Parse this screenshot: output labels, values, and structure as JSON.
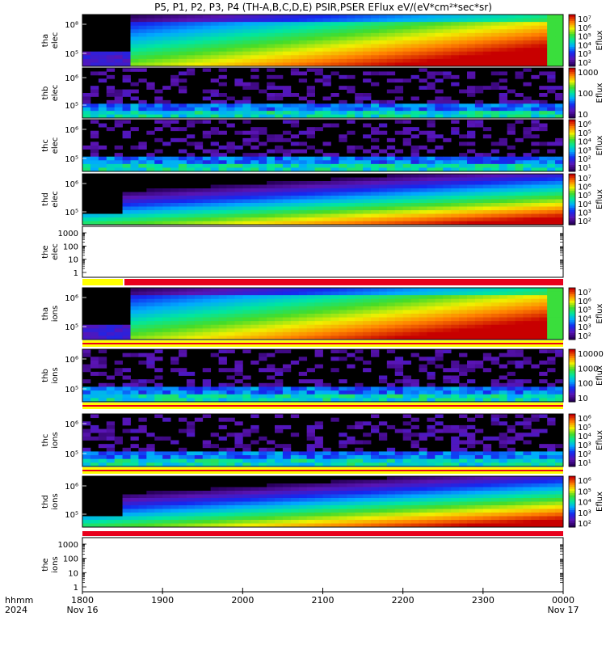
{
  "title": "P5, P1, P2, P3, P4 (TH-A,B,C,D,E) PSIR,PSER EFlux eV/(eV*cm²*sec*sr)",
  "x_axis": {
    "row_label_1": "hhmm",
    "row_label_2": "2024",
    "ticks": [
      "1800",
      "1900",
      "2000",
      "2100",
      "2200",
      "2300",
      "0000"
    ],
    "dates": [
      "Nov 16",
      "Nov 17"
    ]
  },
  "colors": {
    "background_panel": "#000000",
    "flag_red": "#e8001c",
    "flag_yellow": "#ffff00",
    "accent_purple": "#5a1aa0"
  },
  "colorbar_unit": "Eflux",
  "chart_data": [
    {
      "type": "heatmap",
      "probe": "tha",
      "species": "elec",
      "ylabel": [
        "tha",
        "elec"
      ],
      "yticks": [
        "10⁵",
        "10⁸"
      ],
      "cbar": [
        "10⁷",
        "10⁶",
        "10⁵",
        "10⁴",
        "10³",
        "10²"
      ],
      "profile": "strong",
      "start_hhmm": "1850"
    },
    {
      "type": "heatmap",
      "probe": "thb",
      "species": "elec",
      "ylabel": [
        "thb",
        "elec"
      ],
      "yticks": [
        "10⁵",
        "10⁶"
      ],
      "cbar": [
        "1000",
        "100",
        "10"
      ],
      "profile": "noise"
    },
    {
      "type": "heatmap",
      "probe": "thc",
      "species": "elec",
      "ylabel": [
        "thc",
        "elec"
      ],
      "yticks": [
        "10⁵",
        "10⁶"
      ],
      "cbar": [
        "10⁶",
        "10⁵",
        "10⁴",
        "10³",
        "10²",
        "10¹"
      ],
      "profile": "noise"
    },
    {
      "type": "heatmap",
      "probe": "thd",
      "species": "elec",
      "ylabel": [
        "thd",
        "elec"
      ],
      "yticks": [
        "10⁵",
        "10⁶"
      ],
      "cbar": [
        "10⁷",
        "10⁶",
        "10⁵",
        "10⁴",
        "10³",
        "10²"
      ],
      "profile": "rising"
    },
    {
      "type": "line",
      "probe": "the",
      "species": "elec",
      "ylabel": [
        "the",
        "elec"
      ],
      "yticks": [
        "1",
        "10",
        "100",
        "1000"
      ],
      "ylim": [
        1,
        1000
      ],
      "scale": "log",
      "values": []
    },
    {
      "type": "heatmap",
      "probe": "tha",
      "species": "ions",
      "ylabel": [
        "tha",
        "ions"
      ],
      "yticks": [
        "10⁵",
        "10⁶"
      ],
      "cbar": [
        "10⁷",
        "10⁶",
        "10⁵",
        "10⁴",
        "10³",
        "10²"
      ],
      "profile": "strong",
      "start_hhmm": "1850"
    },
    {
      "type": "heatmap",
      "probe": "thb",
      "species": "ions",
      "ylabel": [
        "thb",
        "ions"
      ],
      "yticks": [
        "10⁵",
        "10⁶"
      ],
      "cbar": [
        "10000",
        "1000",
        "100",
        "10"
      ],
      "profile": "noise"
    },
    {
      "type": "heatmap",
      "probe": "thc",
      "species": "ions",
      "ylabel": [
        "thc",
        "ions"
      ],
      "yticks": [
        "10⁵",
        "10⁶"
      ],
      "cbar": [
        "10⁶",
        "10⁵",
        "10⁴",
        "10³",
        "10²",
        "10¹"
      ],
      "profile": "noise"
    },
    {
      "type": "heatmap",
      "probe": "thd",
      "species": "ions",
      "ylabel": [
        "thd",
        "ions"
      ],
      "yticks": [
        "10⁵",
        "10⁶"
      ],
      "cbar": [
        "10⁶",
        "10⁵",
        "10⁴",
        "10³",
        "10²"
      ],
      "profile": "rising"
    },
    {
      "type": "line",
      "probe": "the",
      "species": "ions",
      "ylabel": [
        "the",
        "ions"
      ],
      "yticks": [
        "1",
        "10",
        "100",
        "1000"
      ],
      "ylim": [
        1,
        1000
      ],
      "scale": "log",
      "values": []
    }
  ]
}
